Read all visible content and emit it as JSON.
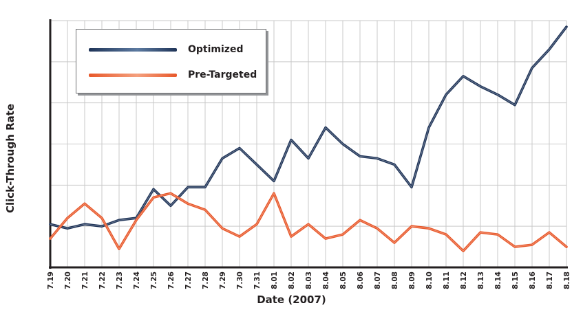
{
  "chart_data": {
    "type": "line",
    "xlabel": "Date (2007)",
    "ylabel": "Click-Through Rate",
    "categories": [
      "7.19",
      "7.20",
      "7.21",
      "7.22",
      "7.23",
      "7.24",
      "7.25",
      "7.26",
      "7.27",
      "7.28",
      "7.29",
      "7.30",
      "7.31",
      "8.01",
      "8.02",
      "8.03",
      "8.04",
      "8.05",
      "8.06",
      "8.07",
      "8.08",
      "8.09",
      "8.10",
      "8.11",
      "8.12",
      "8.13",
      "8.14",
      "8.15",
      "8.16",
      "8.17",
      "8.18"
    ],
    "ylim": [
      0,
      6
    ],
    "y_tick_labels_shown": false,
    "grid": true,
    "legend_position": "top-left",
    "series": [
      {
        "name": "Optimized",
        "color": "#1f3458",
        "values": [
          1.05,
          0.95,
          1.05,
          1.0,
          1.15,
          1.2,
          1.9,
          1.5,
          1.95,
          1.95,
          2.65,
          2.9,
          2.5,
          2.1,
          3.1,
          2.65,
          3.4,
          3.0,
          2.7,
          2.65,
          2.5,
          1.95,
          3.4,
          4.2,
          4.65,
          4.4,
          4.2,
          3.95,
          4.85,
          5.3,
          5.85
        ]
      },
      {
        "name": "Pre-Targeted",
        "color": "#e8582a",
        "values": [
          0.7,
          1.2,
          1.55,
          1.2,
          0.45,
          1.15,
          1.7,
          1.8,
          1.55,
          1.4,
          0.95,
          0.75,
          1.05,
          1.8,
          0.75,
          1.05,
          0.7,
          0.8,
          1.15,
          0.95,
          0.6,
          1.0,
          0.95,
          0.8,
          0.4,
          0.85,
          0.8,
          0.5,
          0.55,
          0.85,
          0.5
        ]
      }
    ]
  }
}
